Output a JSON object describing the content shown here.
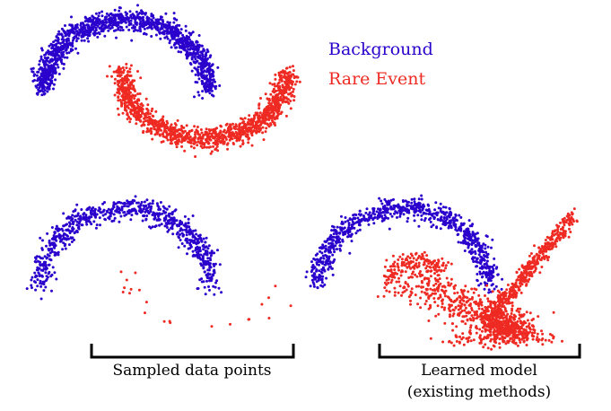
{
  "legend": {
    "background_label": "Background",
    "rare_label": "Rare Event"
  },
  "captions": {
    "sampled": "Sampled data points",
    "learned_line1": "Learned model",
    "learned_line2": "(existing methods)"
  },
  "colors": {
    "background": "#2a00cc",
    "rare": "#ee2a22",
    "bracket": "#000000"
  }
}
